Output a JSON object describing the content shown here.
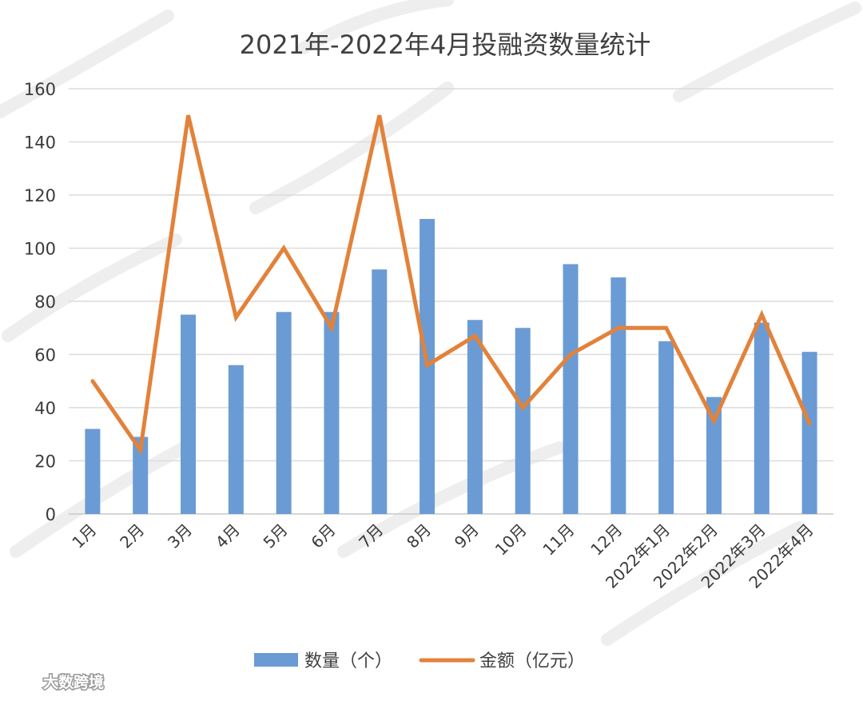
{
  "chart_data": {
    "type": "bar",
    "title": "2021年-2022年4月投融资数量统计",
    "categories": [
      "1月",
      "2月",
      "3月",
      "4月",
      "5月",
      "6月",
      "7月",
      "8月",
      "9月",
      "10月",
      "11月",
      "12月",
      "2022年1月",
      "2022年2月",
      "2022年3月",
      "2022年4月"
    ],
    "series": [
      {
        "name": "数量（个）",
        "type": "bar",
        "color": "#6a9bd4",
        "values": [
          32,
          29,
          75,
          56,
          76,
          76,
          92,
          111,
          73,
          70,
          94,
          89,
          65,
          44,
          72,
          61
        ]
      },
      {
        "name": "金额（亿元）",
        "type": "line",
        "color": "#e2823a",
        "values": [
          50,
          24,
          150,
          74,
          100,
          70,
          150,
          56,
          67,
          40,
          60,
          70,
          70,
          35,
          75,
          34
        ]
      }
    ],
    "ylim": [
      0,
      160
    ],
    "yticks": [
      0,
      20,
      40,
      60,
      80,
      100,
      120,
      140,
      160
    ],
    "grid": true,
    "legend_position": "bottom"
  },
  "watermark": {
    "brand_text": "大数跨境"
  }
}
